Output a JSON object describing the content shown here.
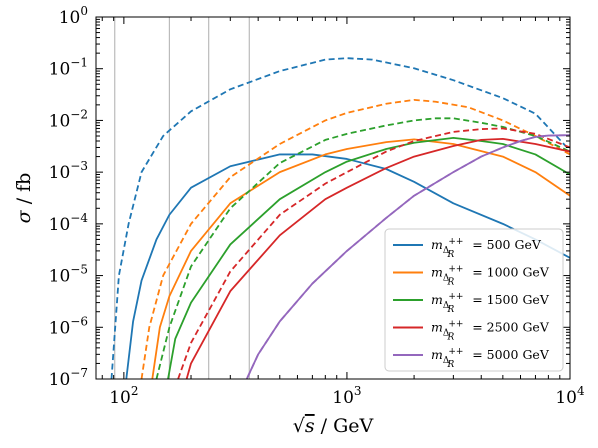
{
  "chart_data": {
    "type": "line",
    "title": "",
    "xlabel": {
      "pre": "√",
      "var": "s",
      "post": " / GeV"
    },
    "ylabel": {
      "var": "σ",
      "post": " / fb"
    },
    "xscale": "log",
    "yscale": "log",
    "xlim": [
      75,
      10000
    ],
    "ylim": [
      1e-07,
      1
    ],
    "x_ticks": [
      {
        "value": 100,
        "base": "10",
        "exp": "2"
      },
      {
        "value": 1000,
        "base": "10",
        "exp": "3"
      },
      {
        "value": 10000,
        "base": "10",
        "exp": "4"
      }
    ],
    "y_ticks": [
      {
        "value": 1,
        "base": "10",
        "exp": "0"
      },
      {
        "value": 0.1,
        "base": "10",
        "exp": "−1"
      },
      {
        "value": 0.01,
        "base": "10",
        "exp": "−2"
      },
      {
        "value": 0.001,
        "base": "10",
        "exp": "−3"
      },
      {
        "value": 0.0001,
        "base": "10",
        "exp": "−4"
      },
      {
        "value": 1e-05,
        "base": "10",
        "exp": "−5"
      },
      {
        "value": 1e-06,
        "base": "10",
        "exp": "−6"
      },
      {
        "value": 1e-07,
        "base": "10",
        "exp": "−7"
      }
    ],
    "vertical_lines": [
      91,
      160,
      240,
      365
    ],
    "grid": false,
    "legend_placement": "lower-right",
    "series": [
      {
        "name": "500 GeV",
        "color": "#1f77b4",
        "solid": [
          [
            100,
            4e-08
          ],
          [
            110,
            1.3e-06
          ],
          [
            120,
            8e-06
          ],
          [
            140,
            5e-05
          ],
          [
            160,
            0.00015
          ],
          [
            200,
            0.0005
          ],
          [
            300,
            0.0013
          ],
          [
            500,
            0.0022
          ],
          [
            700,
            0.0022
          ],
          [
            1000,
            0.0018
          ],
          [
            1500,
            0.00115
          ],
          [
            2000,
            0.00065
          ],
          [
            3000,
            0.00025
          ],
          [
            5000,
            0.0001
          ],
          [
            7000,
            5e-05
          ],
          [
            10000,
            2.2e-05
          ]
        ],
        "dashed": [
          [
            88,
            1e-07
          ],
          [
            95,
            1e-05
          ],
          [
            105,
            0.0001
          ],
          [
            120,
            0.001
          ],
          [
            150,
            0.005
          ],
          [
            200,
            0.015
          ],
          [
            300,
            0.04
          ],
          [
            500,
            0.09
          ],
          [
            800,
            0.15
          ],
          [
            1000,
            0.16
          ],
          [
            1300,
            0.15
          ],
          [
            2000,
            0.102
          ],
          [
            3000,
            0.06
          ],
          [
            5000,
            0.027
          ],
          [
            7000,
            0.0135
          ],
          [
            10000,
            0.0026
          ]
        ]
      },
      {
        "name": "1000 GeV",
        "color": "#ff7f0e",
        "solid": [
          [
            130,
            4e-08
          ],
          [
            145,
            1e-06
          ],
          [
            160,
            4e-06
          ],
          [
            200,
            3e-05
          ],
          [
            300,
            0.00025
          ],
          [
            500,
            0.001
          ],
          [
            800,
            0.0022
          ],
          [
            1000,
            0.0028
          ],
          [
            1500,
            0.0038
          ],
          [
            2000,
            0.0043
          ],
          [
            3000,
            0.0035
          ],
          [
            5000,
            0.002
          ],
          [
            7000,
            0.001
          ],
          [
            10000,
            0.00035
          ]
        ],
        "dashed": [
          [
            120,
            1e-07
          ],
          [
            130,
            1e-06
          ],
          [
            150,
            1e-05
          ],
          [
            200,
            0.0001
          ],
          [
            300,
            0.0008
          ],
          [
            500,
            0.0035
          ],
          [
            800,
            0.01
          ],
          [
            1000,
            0.014
          ],
          [
            1500,
            0.021
          ],
          [
            2000,
            0.025
          ],
          [
            2500,
            0.023
          ],
          [
            3500,
            0.018
          ],
          [
            5000,
            0.01
          ],
          [
            7000,
            0.005
          ],
          [
            10000,
            0.0022
          ]
        ]
      },
      {
        "name": "1500 GeV",
        "color": "#2ca02c",
        "solid": [
          [
            150,
            3e-08
          ],
          [
            170,
            6e-07
          ],
          [
            200,
            3e-06
          ],
          [
            300,
            4e-05
          ],
          [
            500,
            0.0003
          ],
          [
            800,
            0.001
          ],
          [
            1000,
            0.0016
          ],
          [
            1500,
            0.0028
          ],
          [
            2000,
            0.0037
          ],
          [
            3000,
            0.0046
          ],
          [
            4000,
            0.004
          ],
          [
            5000,
            0.0035
          ],
          [
            7000,
            0.0022
          ],
          [
            10000,
            0.0009
          ]
        ],
        "dashed": [
          [
            140,
            1e-07
          ],
          [
            160,
            1e-06
          ],
          [
            200,
            1.5e-05
          ],
          [
            300,
            0.0002
          ],
          [
            500,
            0.0015
          ],
          [
            800,
            0.0042
          ],
          [
            1000,
            0.0055
          ],
          [
            1500,
            0.008
          ],
          [
            2000,
            0.01
          ],
          [
            2500,
            0.011
          ],
          [
            3000,
            0.011
          ],
          [
            4000,
            0.009
          ],
          [
            5000,
            0.0075
          ],
          [
            7000,
            0.005
          ],
          [
            10000,
            0.0025
          ]
        ]
      },
      {
        "name": "2500 GeV",
        "color": "#d62728",
        "solid": [
          [
            180,
            4e-08
          ],
          [
            200,
            2e-07
          ],
          [
            300,
            5e-06
          ],
          [
            500,
            6e-05
          ],
          [
            800,
            0.0003
          ],
          [
            1000,
            0.0005
          ],
          [
            1500,
            0.0012
          ],
          [
            2000,
            0.002
          ],
          [
            3000,
            0.0032
          ],
          [
            4000,
            0.0042
          ],
          [
            5000,
            0.0044
          ],
          [
            7000,
            0.0035
          ],
          [
            10000,
            0.0025
          ]
        ],
        "dashed": [
          [
            175,
            1e-07
          ],
          [
            200,
            5e-07
          ],
          [
            300,
            1.2e-05
          ],
          [
            500,
            0.00015
          ],
          [
            800,
            0.0006
          ],
          [
            1000,
            0.001
          ],
          [
            1500,
            0.0025
          ],
          [
            2000,
            0.004
          ],
          [
            3000,
            0.006
          ],
          [
            4000,
            0.0068
          ],
          [
            5000,
            0.007
          ],
          [
            7000,
            0.0055
          ],
          [
            10000,
            0.003
          ]
        ]
      },
      {
        "name": "5000 GeV",
        "color": "#9467bd",
        "solid": [
          [
            330,
            5e-08
          ],
          [
            400,
            3e-07
          ],
          [
            500,
            1.3e-06
          ],
          [
            700,
            7e-06
          ],
          [
            1000,
            3e-05
          ],
          [
            1500,
            0.00013
          ],
          [
            2000,
            0.00035
          ],
          [
            3000,
            0.001
          ],
          [
            4000,
            0.002
          ],
          [
            5000,
            0.003
          ],
          [
            6000,
            0.004
          ],
          [
            7000,
            0.0048
          ],
          [
            8000,
            0.0051
          ],
          [
            10000,
            0.0052
          ]
        ],
        "dashed": [
          [
            330,
            5e-08
          ],
          [
            400,
            3e-07
          ],
          [
            500,
            1.3e-06
          ],
          [
            700,
            7e-06
          ],
          [
            1000,
            3e-05
          ],
          [
            1500,
            0.00013
          ],
          [
            2000,
            0.00035
          ],
          [
            3000,
            0.001
          ],
          [
            4000,
            0.002
          ],
          [
            5000,
            0.003
          ],
          [
            6000,
            0.004
          ],
          [
            7000,
            0.0048
          ],
          [
            8000,
            0.0051
          ],
          [
            10000,
            0.0052
          ]
        ]
      }
    ],
    "legend": {
      "entries": [
        {
          "label_var": "m",
          "label_sub": "Δ",
          "label_subsub": "R",
          "label_sup": "++",
          "value": "= 500 GeV"
        },
        {
          "label_var": "m",
          "label_sub": "Δ",
          "label_subsub": "R",
          "label_sup": "++",
          "value": "= 1000 GeV"
        },
        {
          "label_var": "m",
          "label_sub": "Δ",
          "label_subsub": "R",
          "label_sup": "++",
          "value": "= 1500 GeV"
        },
        {
          "label_var": "m",
          "label_sub": "Δ",
          "label_subsub": "R",
          "label_sup": "++",
          "value": "= 2500 GeV"
        },
        {
          "label_var": "m",
          "label_sub": "Δ",
          "label_subsub": "R",
          "label_sup": "++",
          "value": "= 5000 GeV"
        }
      ]
    },
    "colors": {
      "axes": "#000000",
      "vertical_lines": "#bbbbbb",
      "legend_border": "#cccccc"
    }
  }
}
